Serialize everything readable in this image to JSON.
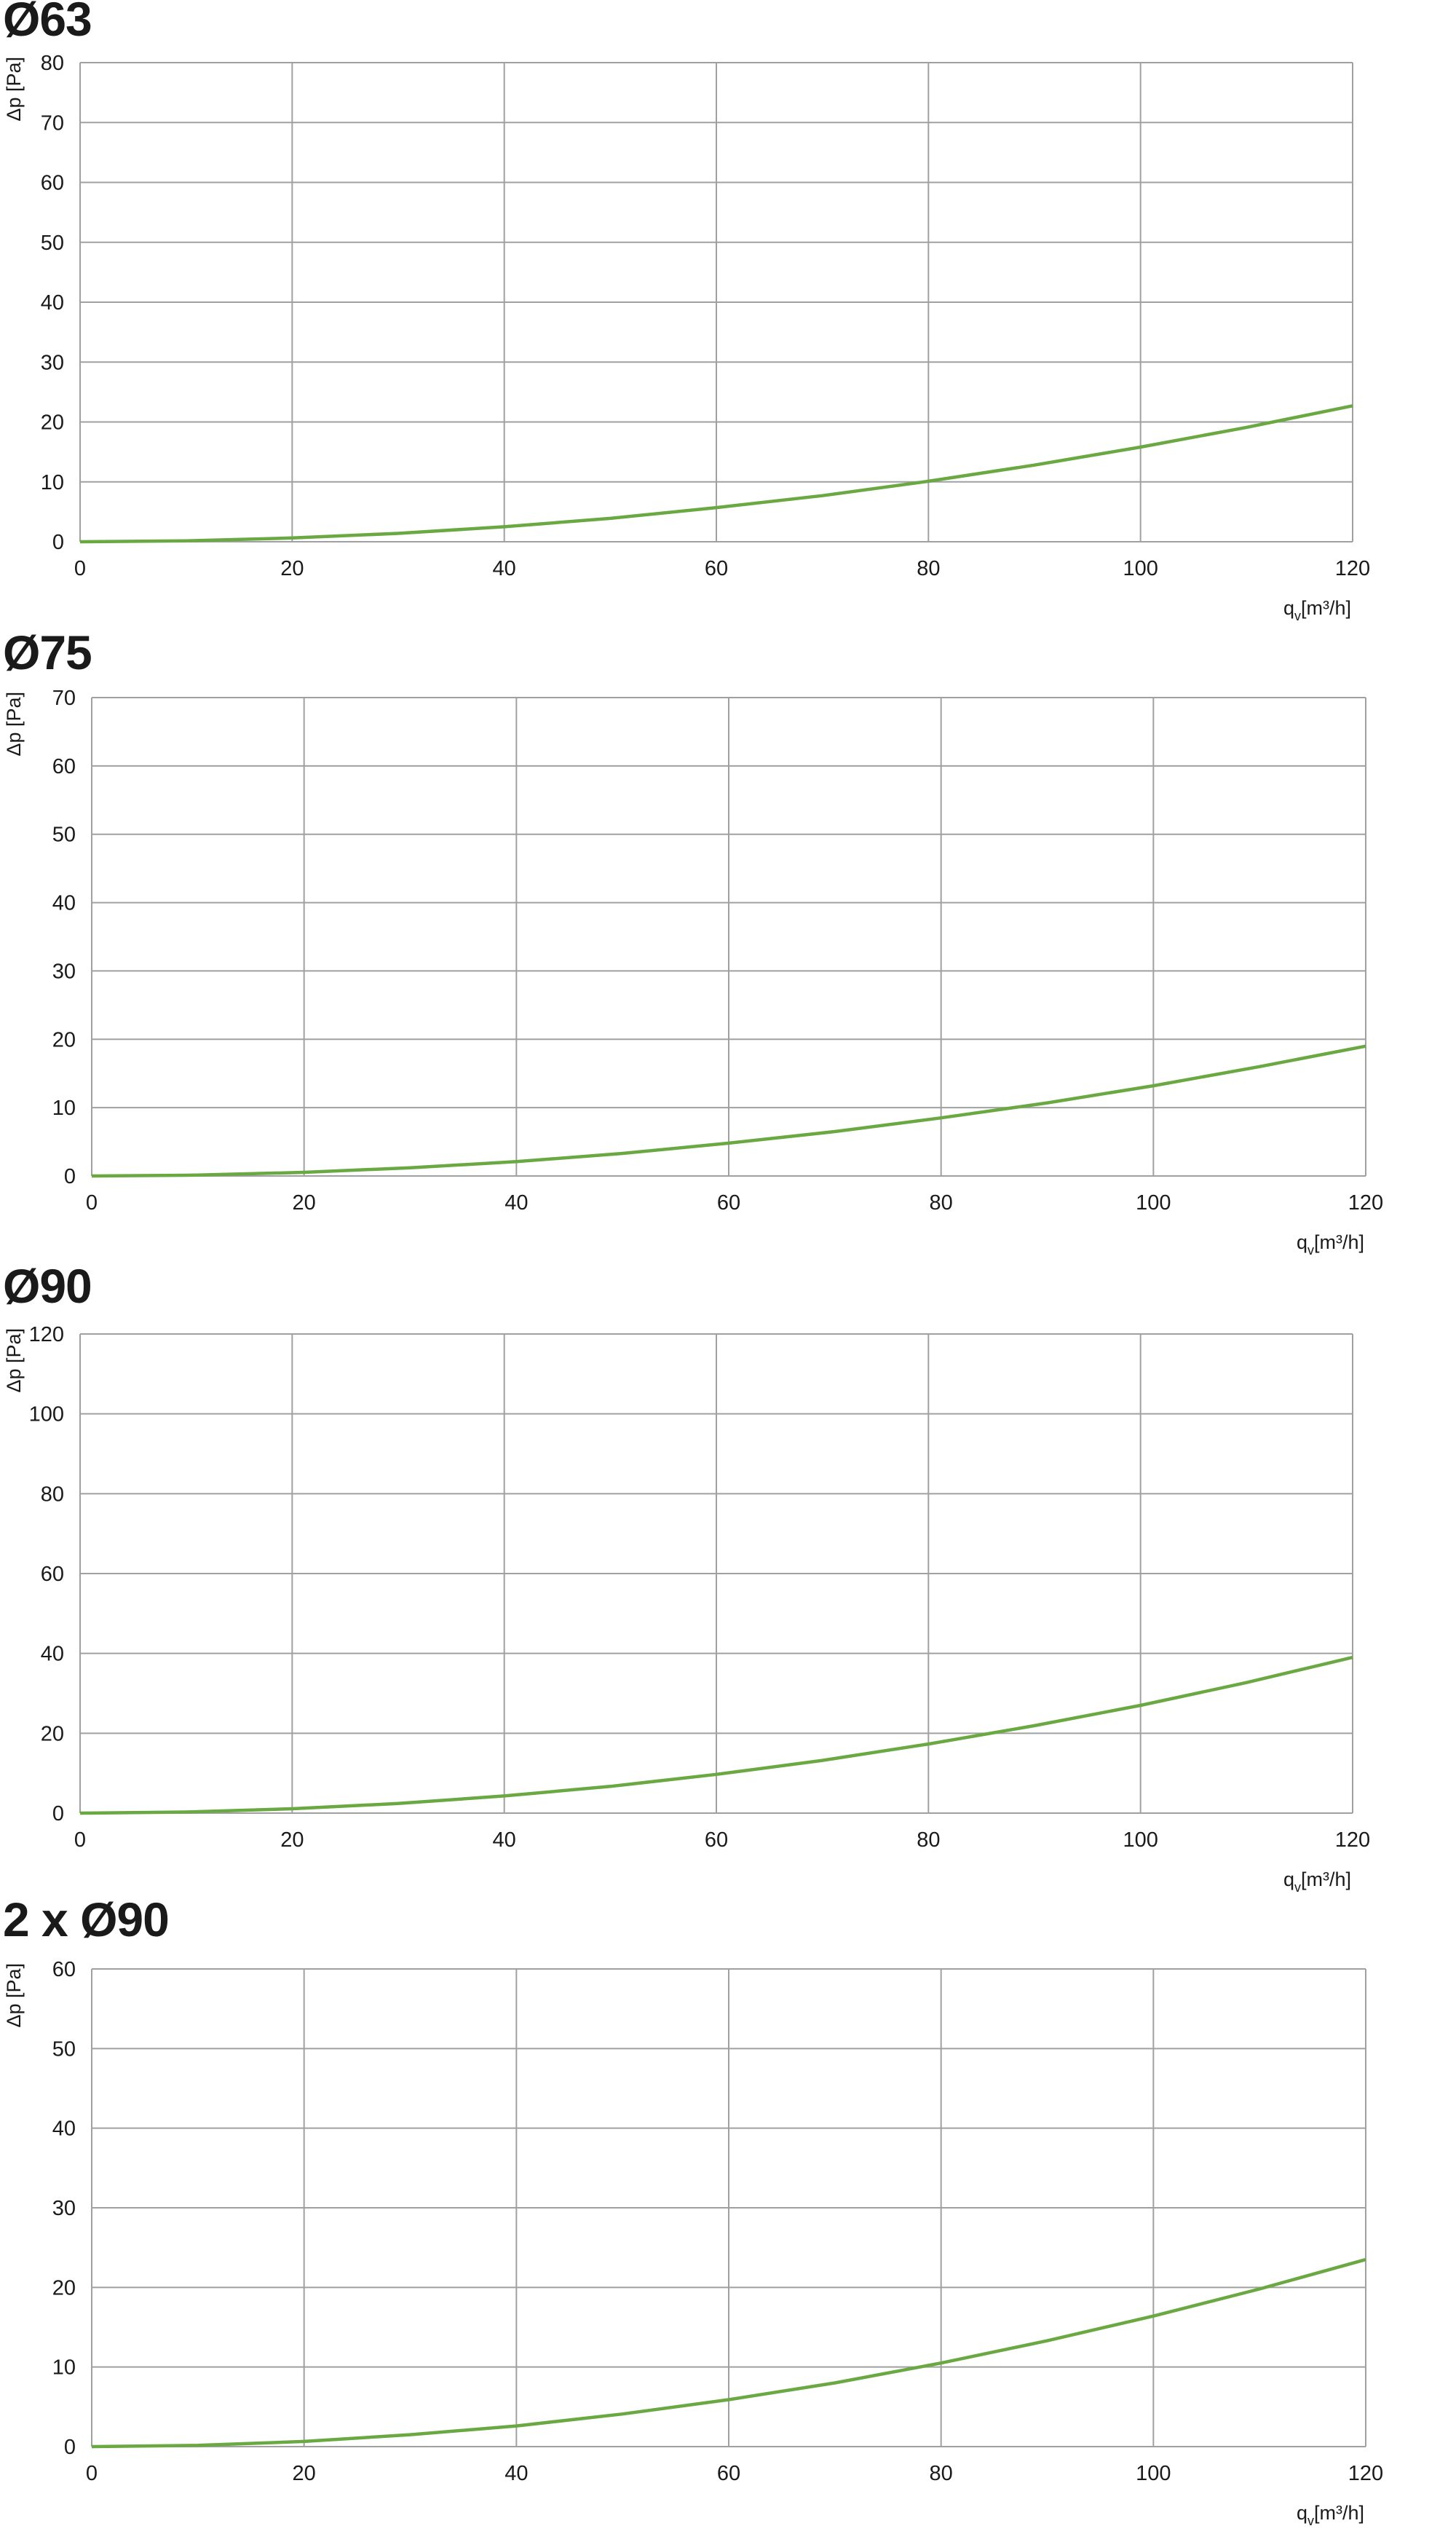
{
  "colors": {
    "curve": "#6aa842",
    "grid": "#a0a0a0",
    "axis": "#8a8a8a",
    "text": "#1a1a1a"
  },
  "chart_data": [
    {
      "type": "line",
      "title": "Ø63",
      "xlabel": "q",
      "xlabel_sub": "v",
      "xlabel_unit": "[m³/h]",
      "ylabel": "Δp [Pa]",
      "xlim": [
        0,
        120
      ],
      "ylim": [
        0,
        80
      ],
      "xticks": [
        0,
        20,
        40,
        60,
        80,
        100,
        120
      ],
      "yticks": [
        0,
        10,
        20,
        30,
        40,
        50,
        60,
        70,
        80
      ],
      "grid": true,
      "series": [
        {
          "x": [
            0,
            10,
            20,
            30,
            40,
            50,
            60,
            70,
            80,
            90,
            100,
            110,
            120
          ],
          "y": [
            0,
            0.16,
            0.63,
            1.4,
            2.5,
            3.9,
            5.7,
            7.7,
            10.1,
            12.8,
            15.8,
            19.1,
            22.7
          ]
        }
      ]
    },
    {
      "type": "line",
      "title": "Ø75",
      "xlabel": "q",
      "xlabel_sub": "v",
      "xlabel_unit": "[m³/h]",
      "ylabel": "Δp [Pa]",
      "xlim": [
        0,
        120
      ],
      "ylim": [
        0,
        70
      ],
      "xticks": [
        0,
        20,
        40,
        60,
        80,
        100,
        120
      ],
      "yticks": [
        0,
        10,
        20,
        30,
        40,
        50,
        60,
        70
      ],
      "grid": true,
      "series": [
        {
          "x": [
            0,
            10,
            20,
            30,
            40,
            50,
            60,
            70,
            80,
            90,
            100,
            110,
            120
          ],
          "y": [
            0,
            0.13,
            0.53,
            1.2,
            2.1,
            3.3,
            4.8,
            6.5,
            8.5,
            10.7,
            13.2,
            16.0,
            19.0
          ]
        }
      ]
    },
    {
      "type": "line",
      "title": "Ø90",
      "xlabel": "q",
      "xlabel_sub": "v",
      "xlabel_unit": "[m³/h]",
      "ylabel": "Δp [Pa]",
      "xlim": [
        0,
        120
      ],
      "ylim": [
        0,
        120
      ],
      "xticks": [
        0,
        20,
        40,
        60,
        80,
        100,
        120
      ],
      "yticks": [
        0,
        20,
        40,
        60,
        80,
        100,
        120
      ],
      "grid": true,
      "series": [
        {
          "x": [
            0,
            10,
            20,
            30,
            40,
            50,
            60,
            70,
            80,
            90,
            100,
            110,
            120
          ],
          "y": [
            0,
            0.27,
            1.1,
            2.4,
            4.3,
            6.7,
            9.7,
            13.2,
            17.3,
            21.9,
            27.0,
            32.7,
            39.0
          ]
        }
      ]
    },
    {
      "type": "line",
      "title": "2 x Ø90",
      "xlabel": "q",
      "xlabel_sub": "v",
      "xlabel_unit": "[m³/h]",
      "ylabel": "Δp [Pa]",
      "xlim": [
        0,
        120
      ],
      "ylim": [
        0,
        60
      ],
      "xticks": [
        0,
        20,
        40,
        60,
        80,
        100,
        120
      ],
      "yticks": [
        0,
        10,
        20,
        30,
        40,
        50,
        60
      ],
      "grid": true,
      "series": [
        {
          "x": [
            0,
            10,
            20,
            30,
            40,
            50,
            60,
            70,
            80,
            90,
            100,
            110,
            120
          ],
          "y": [
            0,
            0.16,
            0.65,
            1.5,
            2.6,
            4.1,
            5.9,
            8.0,
            10.5,
            13.3,
            16.4,
            19.8,
            23.5
          ]
        }
      ]
    }
  ]
}
